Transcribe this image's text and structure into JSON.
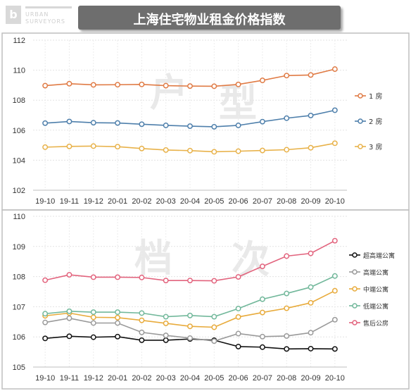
{
  "header": {
    "title": "上海住宅物业租金价格指数"
  },
  "logo": {
    "en_line1": "URBAN",
    "en_line2": "SURVEYORS"
  },
  "watermarks": [
    "户",
    "型",
    "档",
    "次"
  ],
  "chart_data": [
    {
      "type": "line",
      "categories": [
        "19-10",
        "19-11",
        "19-12",
        "20-01",
        "20-02",
        "20-03",
        "20-04",
        "20-05",
        "20-06",
        "20-07",
        "20-08",
        "20-09",
        "20-10"
      ],
      "ylim": [
        102,
        112
      ],
      "yticks": [
        102,
        104,
        106,
        108,
        110,
        112
      ],
      "grid": true,
      "legend": "right",
      "series": [
        {
          "name": "1 房",
          "color": "#e07b45",
          "values": [
            108.97,
            109.1,
            109.02,
            109.03,
            109.05,
            108.97,
            108.94,
            108.93,
            109.05,
            109.32,
            109.64,
            109.68,
            110.07
          ]
        },
        {
          "name": "2 房",
          "color": "#4e7fab",
          "values": [
            106.47,
            106.58,
            106.5,
            106.48,
            106.4,
            106.32,
            106.27,
            106.23,
            106.32,
            106.57,
            106.8,
            106.98,
            107.33
          ]
        },
        {
          "name": "3 房",
          "color": "#e8b24a",
          "values": [
            104.87,
            104.92,
            104.94,
            104.9,
            104.78,
            104.68,
            104.64,
            104.56,
            104.6,
            104.65,
            104.7,
            104.83,
            105.13
          ]
        }
      ]
    },
    {
      "type": "line",
      "categories": [
        "19-10",
        "19-11",
        "19-12",
        "20-01",
        "20-02",
        "20-03",
        "20-04",
        "20-05",
        "20-06",
        "20-07",
        "20-08",
        "20-09",
        "20-10"
      ],
      "ylim": [
        105,
        110
      ],
      "yticks": [
        105,
        106,
        107,
        108,
        109,
        110
      ],
      "grid": true,
      "legend": "right",
      "series": [
        {
          "name": "超高端公寓",
          "color": "#111111",
          "values": [
            105.95,
            106.02,
            105.99,
            106.01,
            105.89,
            105.89,
            105.93,
            105.89,
            105.68,
            105.66,
            105.6,
            105.61,
            105.6
          ]
        },
        {
          "name": "高端公寓",
          "color": "#9a9a9a",
          "values": [
            106.48,
            106.62,
            106.46,
            106.46,
            106.15,
            106.05,
            105.96,
            105.86,
            106.11,
            106.01,
            106.03,
            106.14,
            106.57
          ]
        },
        {
          "name": "中端公寓",
          "color": "#e8ab3c",
          "values": [
            106.7,
            106.79,
            106.65,
            106.64,
            106.55,
            106.45,
            106.35,
            106.32,
            106.66,
            106.81,
            106.95,
            107.13,
            107.53
          ]
        },
        {
          "name": "低端公寓",
          "color": "#72b89b",
          "values": [
            106.77,
            106.85,
            106.82,
            106.82,
            106.79,
            106.67,
            106.71,
            106.67,
            106.94,
            107.25,
            107.44,
            107.65,
            108.02
          ]
        },
        {
          "name": "售后公房",
          "color": "#e2637d",
          "values": [
            107.88,
            108.06,
            107.98,
            107.98,
            107.97,
            107.87,
            107.87,
            107.86,
            107.99,
            108.34,
            108.68,
            108.77,
            109.19
          ]
        }
      ]
    }
  ]
}
